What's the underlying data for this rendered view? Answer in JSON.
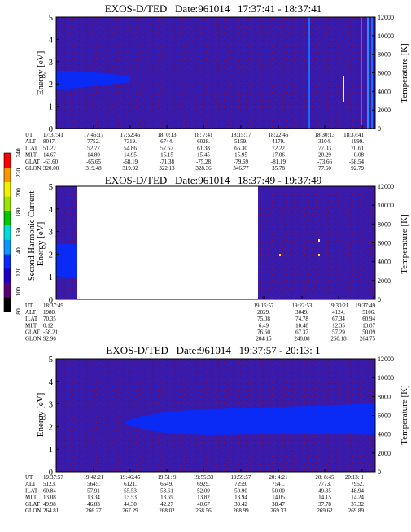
{
  "chart_data": [
    {
      "type": "heatmap",
      "title": "EXOS-D/TED   Date:961014   17:37:41 - 18:37:41",
      "ylabel": "Energy [eV]",
      "y2label": "Temperature [K]",
      "ylim": [
        0,
        5
      ],
      "y2lim": [
        0,
        12000
      ],
      "y_ticks": [
        "0",
        "1",
        "2",
        "3",
        "4",
        "5"
      ],
      "y2_ticks": [
        "0",
        "2000",
        "4000",
        "6000",
        "8000",
        "10000",
        "12000"
      ],
      "row_labels": [
        "UT",
        "ALT",
        "ILAT",
        "MLT",
        "GLAT",
        "GLON"
      ],
      "columns": [
        [
          "17:37:41",
          "8047.",
          "51.22",
          "14.67",
          "-63.60",
          "320.00"
        ],
        [
          "17:45:17",
          "7752.",
          "52.77",
          "14.80",
          "-65.65",
          "319.48"
        ],
        [
          "17:52:45",
          "7319.",
          "54.86",
          "14.95",
          "-68.19",
          "319.92"
        ],
        [
          "18: 0:13",
          "6744.",
          "57.67",
          "15.15",
          "-71.38",
          "322.13"
        ],
        [
          "18: 7:41",
          "6028.",
          "61.38",
          "15.45",
          "-75.28",
          "328.36"
        ],
        [
          "18:15:17",
          "5159.",
          "66.30",
          "15.95",
          "-79.69",
          "346.77"
        ],
        [
          "18:22:45",
          "4179.",
          "72.22",
          "17.06",
          "-81.19",
          "35.78"
        ],
        [
          "18:30:13",
          "3104.",
          "77.03",
          "20.29",
          "-73.66",
          "77.60"
        ],
        [
          "18:37:41",
          "1999.",
          "70.61",
          "0.08",
          "-58.54",
          "92.79"
        ]
      ]
    },
    {
      "type": "heatmap",
      "title": "EXOS-D/TED   Date:961014   18:37:49 - 19:37:49",
      "ylabel": "Energy [eV]",
      "y2label": "Temperature [K]",
      "ylim": [
        0,
        5
      ],
      "y2lim": [
        0,
        12000
      ],
      "y_ticks": [
        "0",
        "1",
        "2",
        "3",
        "4",
        "5"
      ],
      "y2_ticks": [
        "0",
        "2000",
        "4000",
        "6000",
        "8000",
        "10000",
        "12000"
      ],
      "row_labels": [
        "UT",
        "ALT",
        "ILAT",
        "MLT",
        "GLAT",
        "GLON"
      ],
      "columns": [
        [
          "18:37:49",
          "1980.",
          "70.35",
          "0.12",
          "-58.21",
          "92.96"
        ],
        [
          "19:15:57",
          "2029.",
          "75.08",
          "6.49",
          "76.60",
          "204.15"
        ],
        [
          "19:22:53",
          "3049.",
          "74.78",
          "10.48",
          "67.37",
          "248.08"
        ],
        [
          "19:30:21",
          "4124.",
          "67.34",
          "12.35",
          "57.29",
          "260.18"
        ],
        [
          "19:37:49",
          "5106.",
          "60.94",
          "13.07",
          "50.09",
          "264.75"
        ]
      ]
    },
    {
      "type": "heatmap",
      "title": "EXOS-D/TED   Date:961014   19:37:57 - 20:13: 1",
      "ylabel": "Energy [eV]",
      "y2label": "Temperature [K]",
      "ylim": [
        0,
        5
      ],
      "y2lim": [
        0,
        12000
      ],
      "y_ticks": [
        "0",
        "1",
        "2",
        "3",
        "4",
        "5"
      ],
      "y2_ticks": [
        "0",
        "2000",
        "4000",
        "6000",
        "8000",
        "10000",
        "12000"
      ],
      "row_labels": [
        "UT",
        "ALT",
        "ILAT",
        "MLT",
        "GLAT",
        "GLON"
      ],
      "columns": [
        [
          "19:37:57",
          "5123.",
          "60.84",
          "13.08",
          "49.98",
          "264.81"
        ],
        [
          "19:42:21",
          "5645.",
          "57.91",
          "13.34",
          "46.83",
          "266.27"
        ],
        [
          "19:46:45",
          "6121.",
          "55.53",
          "13.53",
          "44.30",
          "267.29"
        ],
        [
          "19:51: 9",
          "6549.",
          "53.61",
          "13.69",
          "42.27",
          "268.02"
        ],
        [
          "19:55:33",
          "6929.",
          "52.09",
          "13.82",
          "40.67",
          "268.56"
        ],
        [
          "19:59:57",
          "7259.",
          "50.90",
          "13.94",
          "39.42",
          "268.99"
        ],
        [
          "20: 4:21",
          "7541.",
          "50.00",
          "14.05",
          "38.47",
          "269.33"
        ],
        [
          "20: 8:45",
          "7773.",
          "49.35",
          "14.15",
          "37.78",
          "269.62"
        ],
        [
          "20:13: 1",
          "7952.",
          "48.94",
          "14.24",
          "37.32",
          "269.89"
        ]
      ]
    }
  ],
  "colorbar": {
    "label": "Second Harmonic Current",
    "ticks": [
      "80",
      "100",
      "120",
      "140",
      "160",
      "180",
      "200",
      "220",
      "240"
    ],
    "range": [
      80,
      240
    ],
    "colors": [
      "#000000",
      "#5a0078",
      "#1e00c8",
      "#0a28ff",
      "#0a96ff",
      "#00dcdc",
      "#00c800",
      "#96e600",
      "#f0f000",
      "#ff9600",
      "#ff0000"
    ]
  },
  "colors": {
    "background": "#3a1aa8",
    "band": "#0a2af6",
    "speckle": "#7a1060",
    "blank": "#ffffff"
  }
}
